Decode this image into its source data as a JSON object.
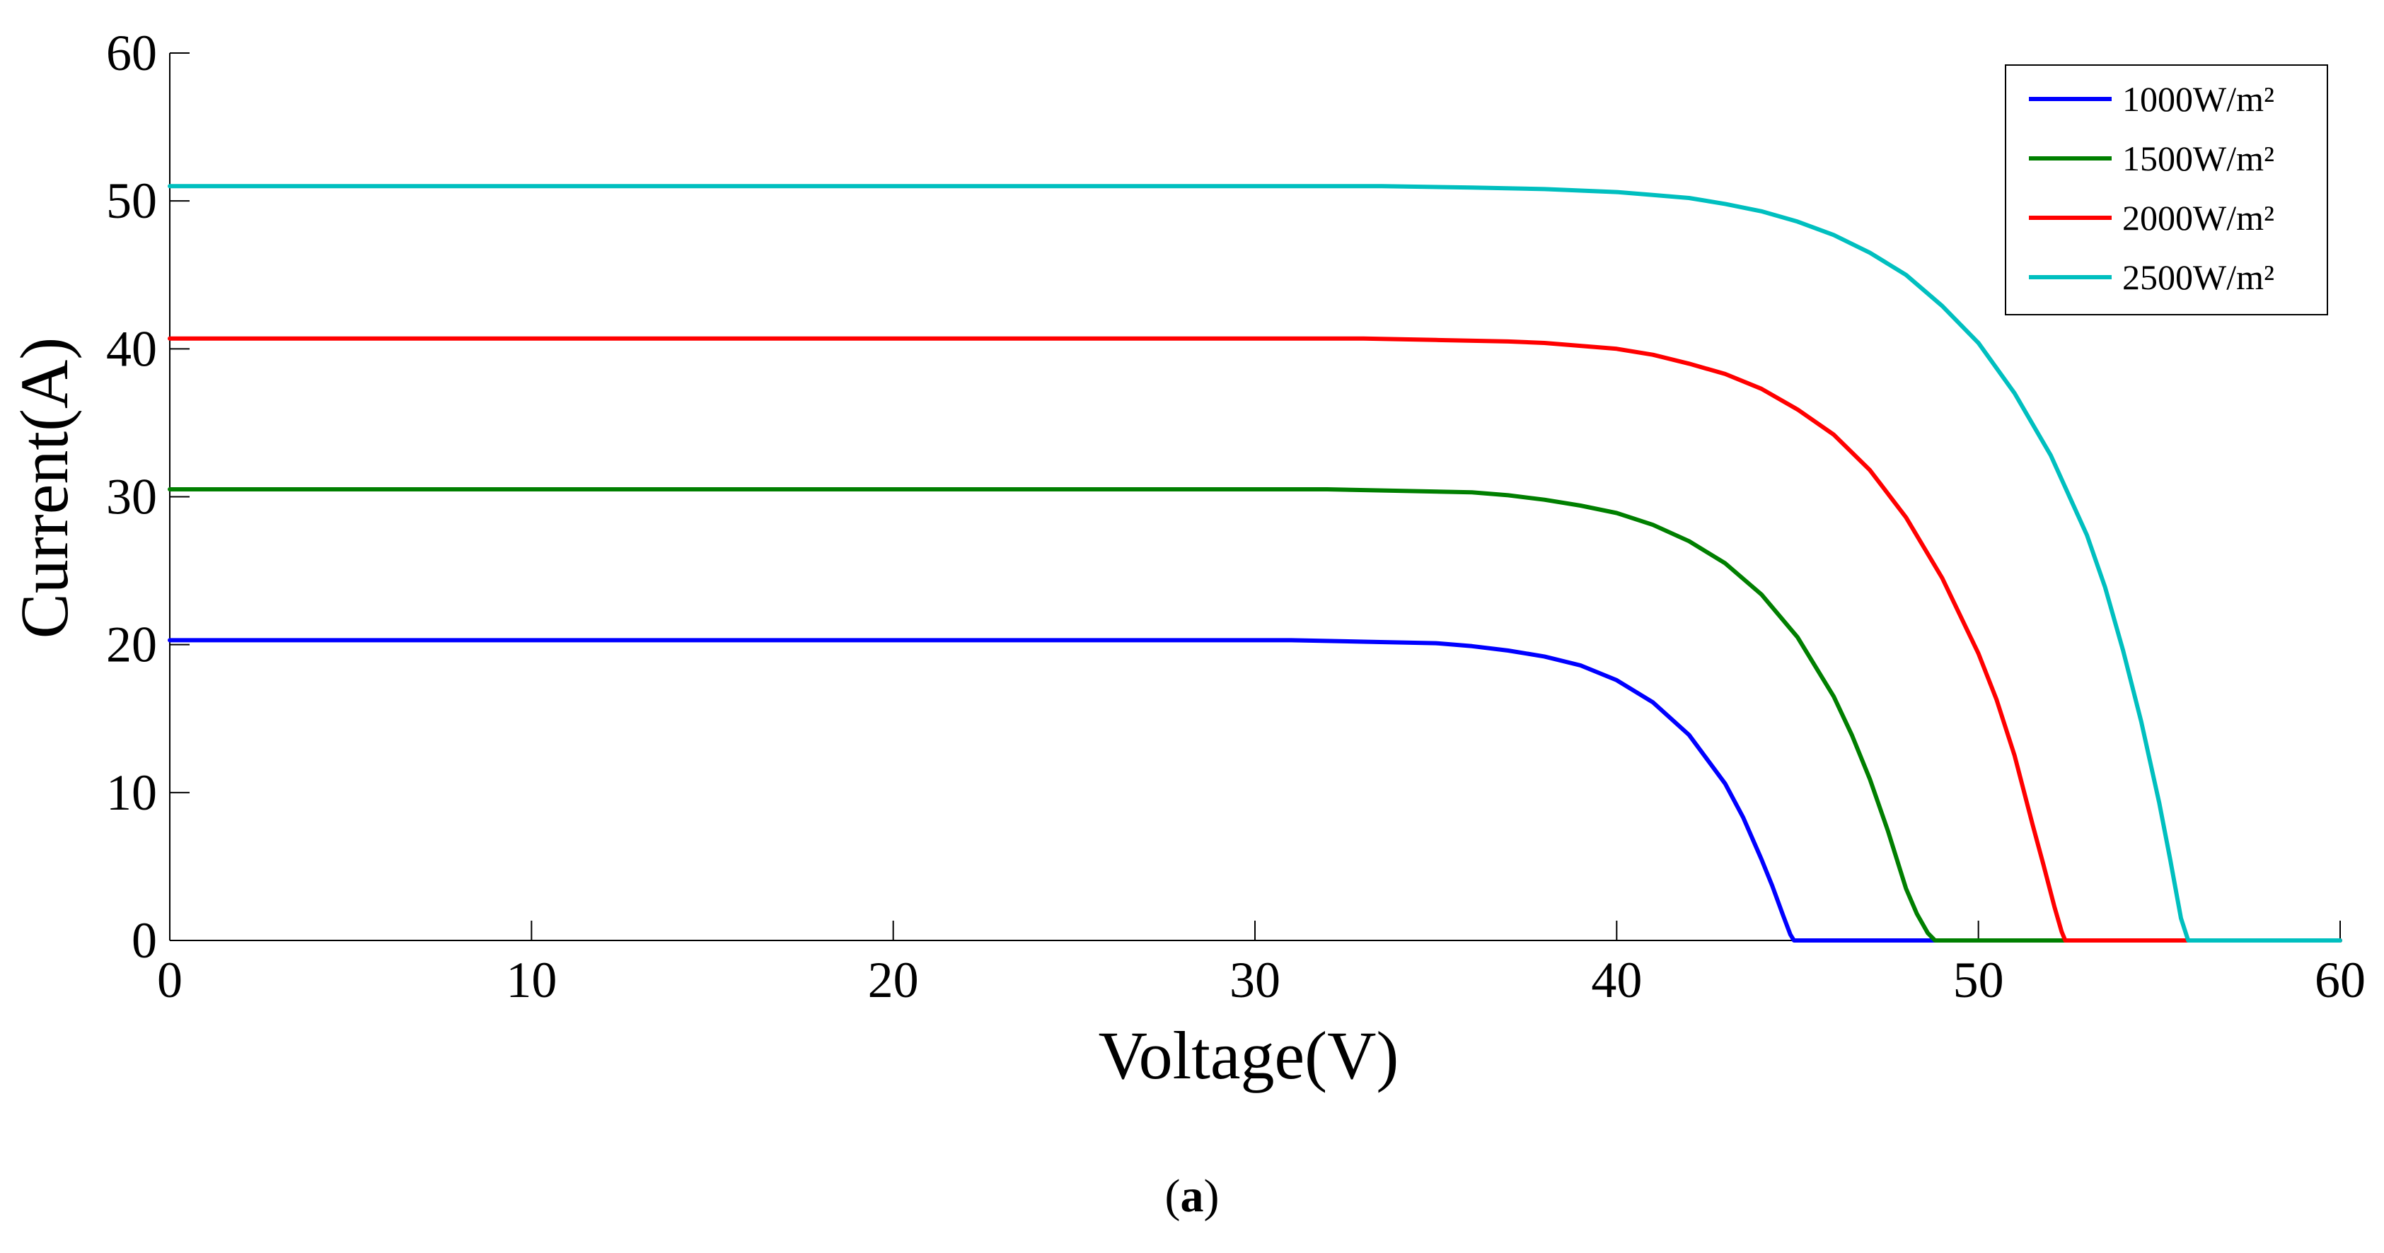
{
  "chart_data": {
    "type": "line",
    "title": "",
    "xlabel": "Voltage(V)",
    "ylabel": "Current(A)",
    "xlim": [
      0,
      60
    ],
    "ylim": [
      0,
      60
    ],
    "xticks": [
      0,
      10,
      20,
      30,
      40,
      50,
      60
    ],
    "yticks": [
      0,
      10,
      20,
      30,
      40,
      50,
      60
    ],
    "grid": false,
    "legend_position": "top-right",
    "series": [
      {
        "name": "1000W/m²",
        "color": "#0000ff",
        "x": [
          0,
          10,
          20,
          31,
          33,
          35,
          36,
          37,
          38,
          39,
          40,
          41,
          42,
          43,
          43.5,
          44,
          44.3,
          44.6,
          44.8,
          44.9,
          60
        ],
        "y": [
          20.3,
          20.3,
          20.3,
          20.3,
          20.2,
          20.1,
          19.9,
          19.6,
          19.2,
          18.6,
          17.6,
          16.1,
          13.9,
          10.6,
          8.3,
          5.5,
          3.7,
          1.7,
          0.4,
          0,
          0
        ]
      },
      {
        "name": "1500W/m²",
        "color": "#007f00",
        "x": [
          0,
          10,
          20,
          32,
          34,
          36,
          37,
          38,
          39,
          40,
          41,
          42,
          43,
          44,
          45,
          46,
          46.5,
          47,
          47.5,
          48,
          48.3,
          48.6,
          48.8,
          60
        ],
        "y": [
          30.5,
          30.5,
          30.5,
          30.5,
          30.4,
          30.3,
          30.1,
          29.8,
          29.4,
          28.9,
          28.1,
          27.0,
          25.5,
          23.4,
          20.5,
          16.5,
          13.9,
          10.9,
          7.4,
          3.5,
          1.8,
          0.5,
          0,
          0
        ]
      },
      {
        "name": "2000W/m²",
        "color": "#ff0000",
        "x": [
          0,
          10,
          20,
          33,
          35,
          37,
          38,
          39,
          40,
          41,
          42,
          43,
          44,
          45,
          46,
          47,
          48,
          49,
          50,
          50.5,
          51,
          51.5,
          51.8,
          52.1,
          52.3,
          52.4,
          60
        ],
        "y": [
          40.7,
          40.7,
          40.7,
          40.7,
          40.6,
          40.5,
          40.4,
          40.2,
          40.0,
          39.6,
          39.0,
          38.3,
          37.3,
          35.9,
          34.2,
          31.8,
          28.6,
          24.5,
          19.4,
          16.3,
          12.5,
          7.8,
          5.1,
          2.3,
          0.6,
          0,
          0
        ]
      },
      {
        "name": "2500W/m²",
        "color": "#00bfbf",
        "x": [
          0,
          10,
          20,
          33.5,
          36,
          38,
          40,
          41,
          42,
          43,
          44,
          45,
          46,
          47,
          48,
          49,
          50,
          51,
          52,
          53,
          53.5,
          54,
          54.5,
          55,
          55.3,
          55.6,
          55.8,
          60
        ],
        "y": [
          51.0,
          51.0,
          51.0,
          51.0,
          50.9,
          50.8,
          50.6,
          50.4,
          50.2,
          49.8,
          49.3,
          48.6,
          47.7,
          46.5,
          45.0,
          42.9,
          40.4,
          37.0,
          32.8,
          27.4,
          23.9,
          19.6,
          14.8,
          9.3,
          5.5,
          1.5,
          0,
          0
        ]
      }
    ]
  },
  "caption": {
    "open": "(",
    "label": "a",
    "close": ")"
  }
}
